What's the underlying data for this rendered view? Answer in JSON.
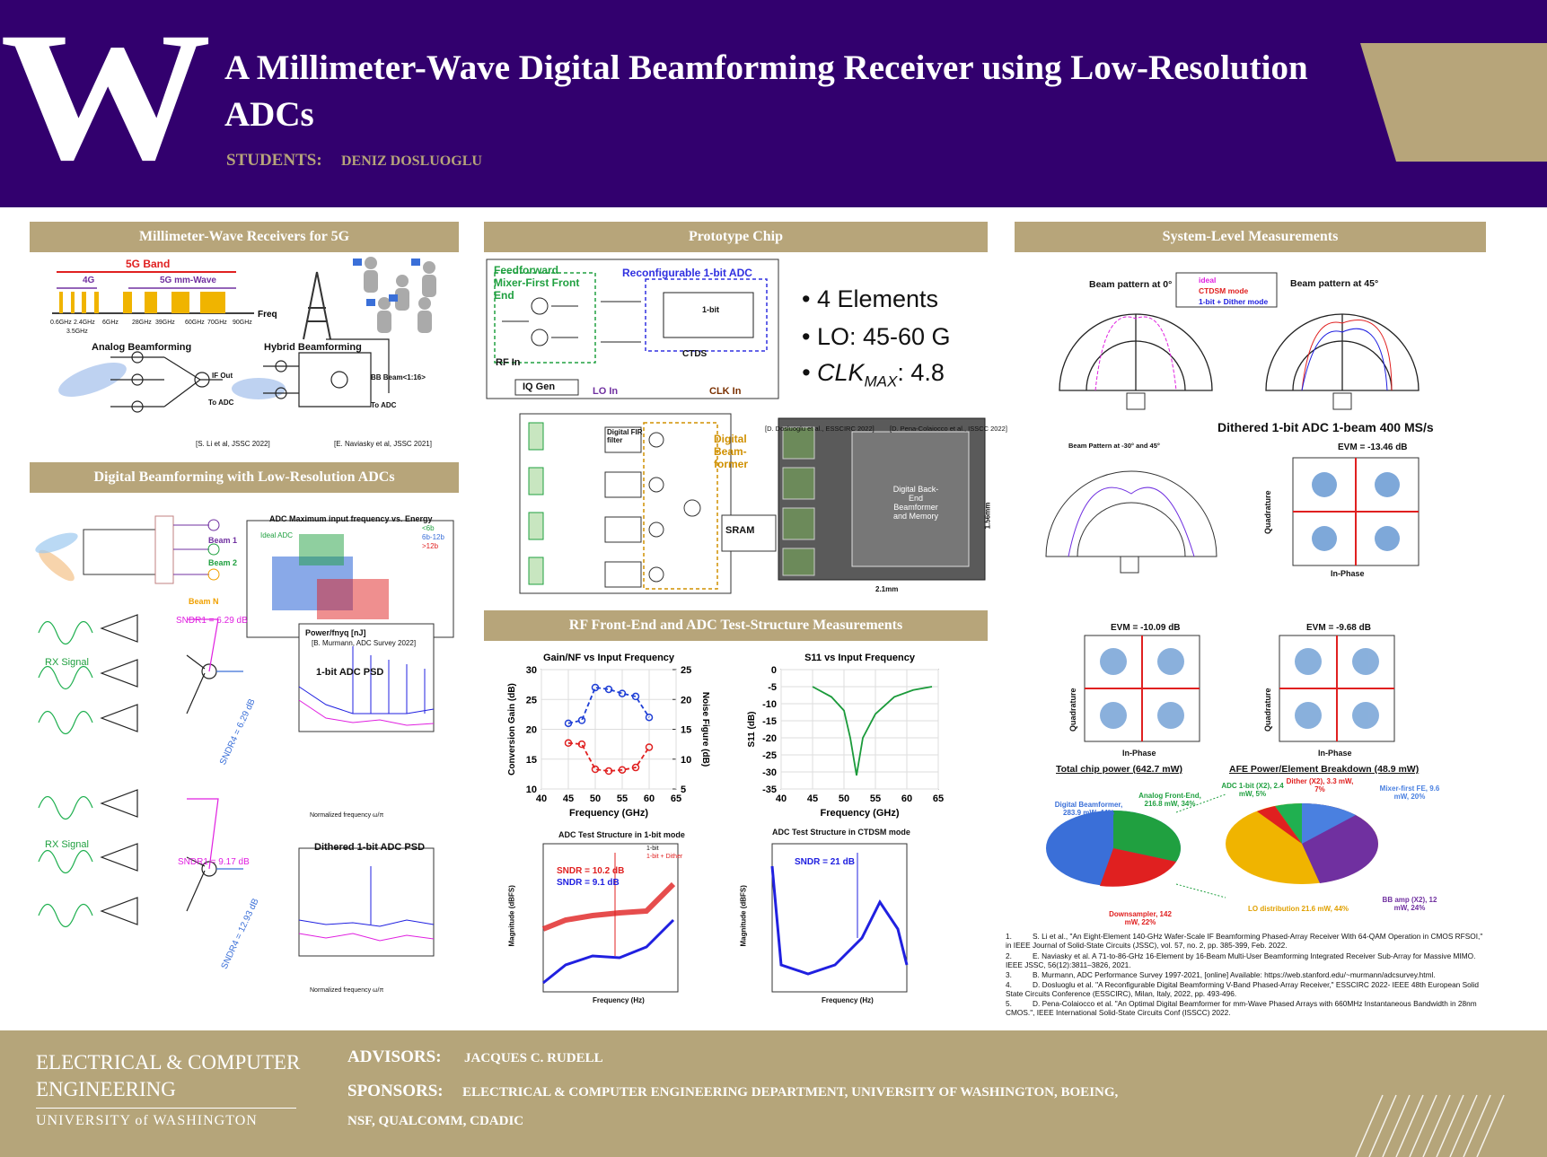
{
  "header": {
    "logo": "W",
    "title": "A Millimeter-Wave Digital Beamforming Receiver using Low-Resolution ADCs",
    "students_label": "STUDENTS:",
    "students": "DENIZ DOSLUOGLU"
  },
  "sections": [
    {
      "title": "Millimeter-Wave Receivers for 5G",
      "labels": [
        "5G Band",
        "4G",
        "5G mm-Wave",
        "Freq",
        "Analog Beamforming",
        "Hybrid Beamforming",
        "[S. Li et al, JSSC 2022]",
        "[E. Naviasky et al, JSSC 2021]",
        "IF Out",
        "To ADC",
        "BB Beam<1:16>",
        "To ADC"
      ],
      "freq_labels": [
        "0.6GHz",
        "2.4GHz",
        "6GHz",
        "28GHz",
        "39GHz",
        "60GHz",
        "70GHz",
        "90GHz",
        "3.5GHz"
      ]
    },
    {
      "title": "Digital Beamforming with Low-Resolution ADCs",
      "labels": [
        "ADC Maximum input frequency vs. Energy",
        "[B. Murmann, ADC Survey 2022]",
        "Beam 1",
        "Beam 2",
        "Beam N",
        "RX Signal",
        "SNDR1 = 6.29 dB",
        "SNDR4 = 6.29 dB",
        "1-bit ADC PSD",
        "RX Signal",
        "SNDR1 = 9.17 dB",
        "SNDR4 = 12.93 dB",
        "Dithered 1-bit ADC PSD",
        "Power/fnyq [nJ]",
        "<6b",
        "6b-12b",
        ">12b",
        "Normalized frequency ω/π",
        "Ideal ADC"
      ]
    },
    {
      "title": "Prototype Chip",
      "labels": [
        "Feedforward Mixer-First Front End",
        "Reconfigurable 1-bit ADC",
        "RF In",
        "IQ Gen",
        "LO In",
        "CLK In",
        "CTDS",
        "Digital Beam-former",
        "SRAM",
        "[D. Dosluoglu et al., ESSCIRC 2022]",
        "[D. Pena-Colaiocco et al., ISSCC 2022]",
        "Digital Back-End Beamformer and Memory",
        "1.56mm",
        "2.1mm",
        "Digital FIR filter",
        "1-bit"
      ],
      "bullets": [
        {
          "text": "4 Elements"
        },
        {
          "text": "LO: 45-60 G"
        },
        {
          "main": "CLK",
          "sub": "MAX",
          "rest": ": 4.8"
        }
      ]
    },
    {
      "title": "RF Front-End and ADC Test-Structure Measurements",
      "labels": [
        "ADC Test Structure in 1-bit mode",
        "SNDR = 10.2 dB",
        "SNDR = 9.1 dB",
        "ADC Test Structure in CTDSM mode",
        "SNDR = 21 dB",
        "Frequency (Hz)",
        "Magnitude (dBFS)",
        "1-bit",
        "1-bit + Dither"
      ]
    },
    {
      "title": "System-Level Measurements",
      "labels": [
        "Beam pattern at 0°",
        "Beam pattern at 45°",
        "ideal",
        "CTDSM mode",
        "1-bit + Dither mode",
        "Dithered 1-bit ADC 1-beam 400 MS/s",
        "Beam Pattern at -30° and 45°",
        "EVM = -13.46 dB",
        "Quadrature",
        "In-Phase",
        "EVM = -10.09 dB",
        "EVM = -9.68 dB",
        "Total chip power (642.7 mW)",
        "AFE Power/Element Breakdown (48.9 mW)",
        "Digital Beamformer, 283.9 mW, 44%",
        "Analog Front-End, 216.8 mW, 34%",
        "Downsampler, 142 mW, 22%",
        "ADC 1-bit (X2), 2.4 mW, 5%",
        "Dither (X2), 3.3 mW, 7%",
        "Mixer-first FE, 9.6 mW, 20%",
        "BB amp (X2), 12 mW, 24%",
        "LO distribution 21.6 mW, 44%"
      ]
    }
  ],
  "chart_data": [
    {
      "type": "line",
      "title": "Gain/NF vs Input Frequency",
      "x": [
        45,
        47.5,
        50,
        52.5,
        55,
        57.5,
        60
      ],
      "series": [
        {
          "name": "Conversion Gain",
          "color": "#1f3fd6",
          "values": [
            21,
            21.5,
            27,
            26.7,
            26,
            25.5,
            22
          ]
        },
        {
          "name": "Noise Figure",
          "color": "#e02020",
          "axis": "y2",
          "values": [
            12.7,
            12.5,
            8.3,
            8,
            8.2,
            8.6,
            12
          ]
        }
      ],
      "xlim": [
        40,
        65
      ],
      "xticks": [
        40,
        45,
        50,
        55,
        60,
        65
      ],
      "ylim": [
        10,
        30
      ],
      "yticks": [
        10,
        15,
        20,
        25,
        30
      ],
      "y2lim": [
        5,
        25
      ],
      "y2ticks": [
        5,
        10,
        15,
        20,
        25
      ],
      "xlabel": "Frequency (GHz)",
      "ylabel": "Conversion Gain (dB)",
      "y2label": "Noise Figure (dB)",
      "grid": true
    },
    {
      "type": "line",
      "title": "S11 vs Input Frequency",
      "x": [
        45,
        48,
        50,
        51,
        52,
        53,
        55,
        58,
        61,
        64
      ],
      "series": [
        {
          "name": "S11",
          "color": "#1a9a3a",
          "values": [
            -5,
            -8,
            -12,
            -20,
            -31,
            -20,
            -13,
            -8,
            -6,
            -5
          ]
        }
      ],
      "xlim": [
        40,
        65
      ],
      "xticks": [
        40,
        45,
        50,
        55,
        60,
        65
      ],
      "ylim": [
        -35,
        0
      ],
      "yticks": [
        -35,
        -30,
        -25,
        -20,
        -15,
        -10,
        -5,
        0
      ],
      "xlabel": "Frequency (GHz)",
      "ylabel": "S11 (dB)",
      "grid": true
    }
  ],
  "references": [
    {
      "n": "1.",
      "text": "S. Li et al., \"An Eight-Element 140-GHz Wafer-Scale IF Beamforming Phased-Array Receiver With 64-QAM Operation in CMOS RFSOI,\" in IEEE Journal of Solid-State Circuits (JSSC), vol. 57, no. 2, pp. 385-399, Feb. 2022."
    },
    {
      "n": "2.",
      "text": "E. Naviasky et al. A 71-to-86-GHz 16-Element by 16-Beam Multi-User Beamforming Integrated Receiver Sub-Array for Massive MIMO. IEEE JSSC, 56(12):3811–3826, 2021."
    },
    {
      "n": "3.",
      "text": "B. Murmann, ADC Performance Survey 1997-2021, [online] Available: https://web.stanford.edu/~murmann/adcsurvey.html."
    },
    {
      "n": "4.",
      "text": "D. Dosluoglu et al. \"A Reconfigurable Digital Beamforming V-Band Phased-Array Receiver,\" ESSCIRC 2022- IEEE 48th European Solid State Circuits Conference (ESSCIRC), Milan, Italy, 2022, pp. 493-496."
    },
    {
      "n": "5.",
      "text": "D. Pena-Colaiocco et al. \"An Optimal Digital Beamformer for mm-Wave Phased Arrays with 660MHz Instantaneous Bandwidth in 28nm CMOS.\", IEEE International Solid-State Circuits Conf (ISSCC) 2022."
    }
  ],
  "footer": {
    "dept_line1": "ELECTRICAL & COMPUTER",
    "dept_line2": "ENGINEERING",
    "university": "UNIVERSITY of WASHINGTON",
    "advisors_label": "ADVISORS:",
    "advisors": "JACQUES C. RUDELL",
    "sponsors_label": "SPONSORS:",
    "sponsors_line1": "ELECTRICAL & COMPUTER ENGINEERING DEPARTMENT, UNIVERSITY OF WASHINGTON, BOEING,",
    "sponsors_line2": "NSF, QUALCOMM, CDADIC"
  }
}
